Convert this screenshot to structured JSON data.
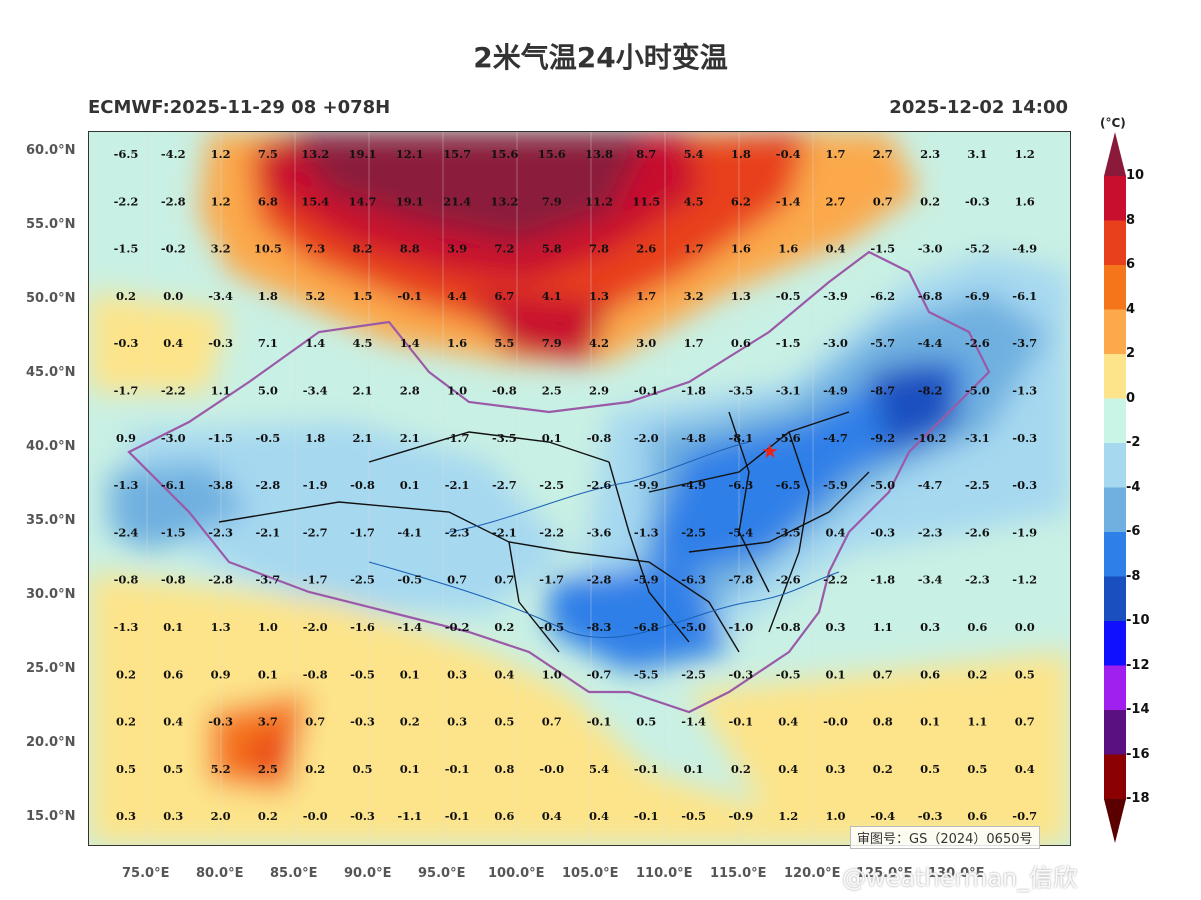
{
  "title": "2米气温24小时变温",
  "model_info": "ECMWF:2025-11-29 08 +078H",
  "valid_time": "2025-12-02 14:00",
  "colorbar": {
    "unit": "(°C)",
    "levels": [
      "10",
      "8",
      "6",
      "4",
      "2",
      "0",
      "-2",
      "-4",
      "-6",
      "-8",
      "-10",
      "-12",
      "-14",
      "-16",
      "-18"
    ],
    "colors": [
      "#8b1a3a",
      "#c8102e",
      "#e8401c",
      "#f5761a",
      "#fba94b",
      "#fde48a",
      "#c9f5e6",
      "#a6d8f0",
      "#6fb0e0",
      "#2f7fe8",
      "#1a4fc0",
      "#1010ff",
      "#a020f0",
      "#5a1080",
      "#8b0000",
      "#5a0000"
    ]
  },
  "axes": {
    "lat_labels": [
      "60.0°N",
      "55.0°N",
      "50.0°N",
      "45.0°N",
      "40.0°N",
      "35.0°N",
      "30.0°N",
      "25.0°N",
      "20.0°N",
      "15.0°N"
    ],
    "lon_labels": [
      "75.0°E",
      "80.0°E",
      "85.0°E",
      "90.0°E",
      "95.0°E",
      "100.0°E",
      "105.0°E",
      "110.0°E",
      "115.0°E",
      "120.0°E",
      "125.0°E",
      "130.0°E"
    ]
  },
  "grid_values": [
    [
      "-6.5",
      "-4.2",
      "1.2",
      "7.5",
      "13.2",
      "19.1",
      "12.1",
      "15.7",
      "15.6",
      "15.6",
      "13.8",
      "8.7",
      "5.4",
      "1.8",
      "-0.4",
      "1.7",
      "2.7",
      "2.3",
      "3.1",
      "1.2"
    ],
    [
      "-2.2",
      "-2.8",
      "1.2",
      "6.8",
      "15.4",
      "14.7",
      "19.1",
      "21.4",
      "13.2",
      "7.9",
      "11.2",
      "11.5",
      "4.5",
      "6.2",
      "-1.4",
      "2.7",
      "0.7",
      "0.2",
      "-0.3",
      "1.6"
    ],
    [
      "-1.5",
      "-0.2",
      "3.2",
      "10.5",
      "7.3",
      "8.2",
      "8.8",
      "3.9",
      "7.2",
      "5.8",
      "7.8",
      "2.6",
      "1.7",
      "1.6",
      "1.6",
      "0.4",
      "-1.5",
      "-3.0",
      "-5.2",
      "-4.9"
    ],
    [
      "0.2",
      "0.0",
      "-3.4",
      "1.8",
      "5.2",
      "1.5",
      "-0.1",
      "4.4",
      "6.7",
      "4.1",
      "1.3",
      "1.7",
      "3.2",
      "1.3",
      "-0.5",
      "-3.9",
      "-6.2",
      "-6.8",
      "-6.9",
      "-6.1"
    ],
    [
      "-0.3",
      "0.4",
      "-0.3",
      "7.1",
      "1.4",
      "4.5",
      "1.4",
      "1.6",
      "5.5",
      "7.9",
      "4.2",
      "3.0",
      "1.7",
      "0.6",
      "-1.5",
      "-3.0",
      "-5.7",
      "-4.4",
      "-2.6",
      "-3.7"
    ],
    [
      "-1.7",
      "-2.2",
      "1.1",
      "5.0",
      "-3.4",
      "2.1",
      "2.8",
      "1.0",
      "-0.8",
      "2.5",
      "2.9",
      "-0.1",
      "-1.8",
      "-3.5",
      "-3.1",
      "-4.9",
      "-8.7",
      "-8.2",
      "-5.0",
      "-1.3"
    ],
    [
      "0.9",
      "-3.0",
      "-1.5",
      "-0.5",
      "1.8",
      "2.1",
      "2.1",
      "-1.7",
      "-3.5",
      "0.1",
      "-0.8",
      "-2.0",
      "-4.8",
      "-8.1",
      "-5.6",
      "-4.7",
      "-9.2",
      "-10.2",
      "-3.1",
      "-0.3"
    ],
    [
      "-1.3",
      "-6.1",
      "-3.8",
      "-2.8",
      "-1.9",
      "-0.8",
      "0.1",
      "-2.1",
      "-2.7",
      "-2.5",
      "-2.6",
      "-9.9",
      "-4.9",
      "-6.3",
      "-6.5",
      "-5.9",
      "-5.0",
      "-4.7",
      "-2.5",
      "-0.3"
    ],
    [
      "-2.4",
      "-1.5",
      "-2.3",
      "-2.1",
      "-2.7",
      "-1.7",
      "-4.1",
      "-2.3",
      "-2.1",
      "-2.2",
      "-3.6",
      "-1.3",
      "-2.5",
      "-5.4",
      "-3.5",
      "0.4",
      "-0.3",
      "-2.3",
      "-2.6",
      "-1.9"
    ],
    [
      "-0.8",
      "-0.8",
      "-2.8",
      "-3.7",
      "-1.7",
      "-2.5",
      "-0.5",
      "0.7",
      "0.7",
      "-1.7",
      "-2.8",
      "-5.9",
      "-6.3",
      "-7.8",
      "-2.6",
      "-2.2",
      "-1.8",
      "-3.4",
      "-2.3",
      "-1.2"
    ],
    [
      "-1.3",
      "0.1",
      "1.3",
      "1.0",
      "-2.0",
      "-1.6",
      "-1.4",
      "-0.2",
      "0.2",
      "-0.5",
      "-8.3",
      "-6.8",
      "-5.0",
      "-1.0",
      "-0.8",
      "0.3",
      "1.1",
      "0.3",
      "0.6",
      "0.0"
    ],
    [
      "0.2",
      "0.6",
      "0.9",
      "0.1",
      "-0.8",
      "-0.5",
      "0.1",
      "0.3",
      "0.4",
      "1.0",
      "-0.7",
      "-5.5",
      "-2.5",
      "-0.3",
      "-0.5",
      "0.1",
      "0.7",
      "0.6",
      "0.2",
      "0.5"
    ],
    [
      "0.2",
      "0.4",
      "-0.3",
      "3.7",
      "0.7",
      "-0.3",
      "0.2",
      "0.3",
      "0.5",
      "0.7",
      "-0.1",
      "0.5",
      "-1.4",
      "-0.1",
      "0.4",
      "-0.0",
      "0.8",
      "0.1",
      "1.1",
      "0.7"
    ],
    [
      "0.5",
      "0.5",
      "5.2",
      "2.5",
      "0.2",
      "0.5",
      "0.1",
      "-0.1",
      "0.8",
      "-0.0",
      "5.4",
      "-0.1",
      "0.1",
      "0.2",
      "0.4",
      "0.3",
      "0.2",
      "0.5",
      "0.5",
      "0.4"
    ],
    [
      "0.3",
      "0.3",
      "2.0",
      "0.2",
      "-0.0",
      "-0.3",
      "-1.1",
      "-0.1",
      "0.6",
      "0.4",
      "0.4",
      "-0.1",
      "-0.5",
      "-0.9",
      "1.2",
      "1.0",
      "-0.4",
      "-0.3",
      "0.6",
      "-0.7"
    ]
  ],
  "beijing_marker": "star",
  "gs_number": "审图号：GS（2024）0650号",
  "watermark": "@weatherman_信欣"
}
